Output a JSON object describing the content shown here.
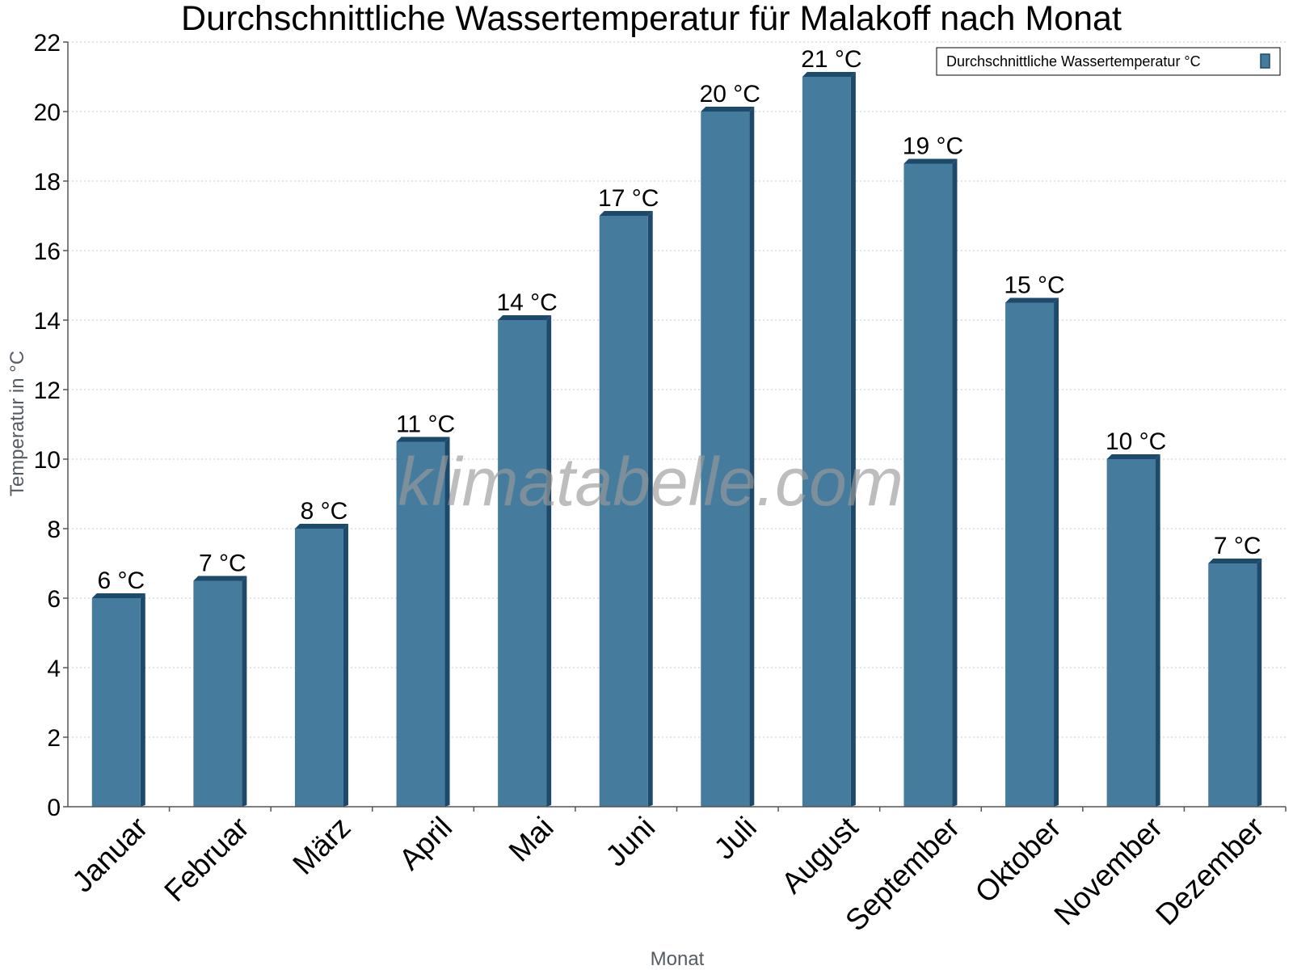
{
  "chart_data": {
    "type": "bar",
    "title": "Durchschnittliche Wassertemperatur für Malakoff nach Monat",
    "xlabel": "Monat",
    "ylabel": "Temperatur in °C",
    "ylim": [
      0,
      22
    ],
    "yticks": [
      "0",
      "2",
      "4",
      "6",
      "8",
      "10",
      "12",
      "14",
      "16",
      "18",
      "20",
      "22"
    ],
    "grid": true,
    "legend_position": "top-right",
    "categories": [
      "Januar",
      "Februar",
      "März",
      "April",
      "Mai",
      "Juni",
      "Juli",
      "August",
      "September",
      "Oktober",
      "November",
      "Dezember"
    ],
    "series": [
      {
        "name": "Durchschnittliche Wassertemperatur °C",
        "color": "#457b9d",
        "values": [
          6,
          6.5,
          8,
          10.5,
          14,
          17,
          20,
          21,
          18.5,
          14.5,
          10,
          7
        ],
        "labels": [
          "6 °C",
          "7 °C",
          "8 °C",
          "11 °C",
          "14 °C",
          "17 °C",
          "20 °C",
          "21 °C",
          "19 °C",
          "15 °C",
          "10 °C",
          "7 °C"
        ]
      }
    ],
    "watermark": "klimatabelle.com"
  }
}
